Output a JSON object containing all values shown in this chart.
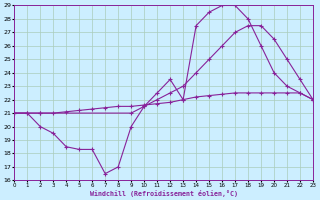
{
  "xlabel": "Windchill (Refroidissement éolien,°C)",
  "bg_color": "#cceeff",
  "grid_color": "#aaccbb",
  "line_color": "#882299",
  "xmin": 0,
  "xmax": 23,
  "ymin": 16,
  "ymax": 29,
  "series1_x": [
    0,
    1,
    2,
    3,
    4,
    5,
    6,
    7,
    8,
    9,
    10,
    11,
    12,
    13,
    14,
    15,
    16,
    17,
    18,
    19,
    20,
    21,
    22,
    23
  ],
  "series1_y": [
    21.0,
    21.0,
    20.0,
    19.5,
    18.5,
    18.3,
    18.3,
    16.5,
    17.0,
    20.0,
    21.5,
    22.5,
    23.5,
    22.0,
    27.5,
    28.5,
    29.0,
    29.0,
    28.0,
    26.0,
    24.0,
    23.0,
    22.5,
    22.0
  ],
  "series2_x": [
    0,
    2,
    9,
    10,
    11,
    12,
    13,
    14,
    15,
    16,
    17,
    18,
    19,
    20,
    21,
    22,
    23
  ],
  "series2_y": [
    21.0,
    21.0,
    21.0,
    21.5,
    22.0,
    22.5,
    23.0,
    24.0,
    25.0,
    26.0,
    27.0,
    27.5,
    27.5,
    26.5,
    25.0,
    23.5,
    22.0
  ],
  "series3_x": [
    0,
    1,
    2,
    3,
    4,
    5,
    6,
    7,
    8,
    9,
    10,
    11,
    12,
    13,
    14,
    15,
    16,
    17,
    18,
    19,
    20,
    21,
    22,
    23
  ],
  "series3_y": [
    21.0,
    21.0,
    21.0,
    21.0,
    21.1,
    21.2,
    21.3,
    21.4,
    21.5,
    21.5,
    21.6,
    21.7,
    21.8,
    22.0,
    22.2,
    22.3,
    22.4,
    22.5,
    22.5,
    22.5,
    22.5,
    22.5,
    22.5,
    22.0
  ]
}
